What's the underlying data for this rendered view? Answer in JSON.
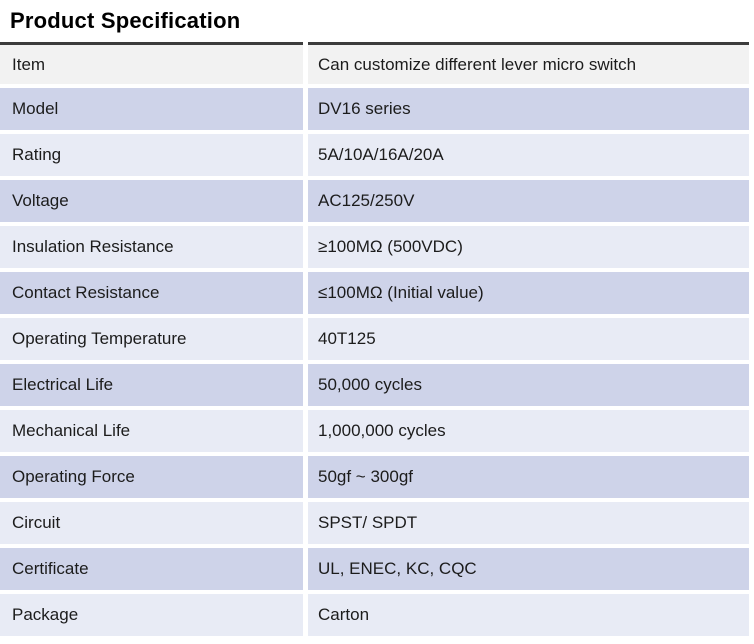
{
  "page": {
    "title": "Product Specification"
  },
  "table": {
    "rows": [
      {
        "label": "Item",
        "value": "Can customize different lever micro switch"
      },
      {
        "label": "Model",
        "value": "DV16 series"
      },
      {
        "label": "Rating",
        "value": "5A/10A/16A/20A"
      },
      {
        "label": "Voltage",
        "value": "AC125/250V"
      },
      {
        "label": "Insulation Resistance",
        "value": "≥100MΩ (500VDC)"
      },
      {
        "label": "Contact Resistance",
        "value": "≤100MΩ (Initial value)"
      },
      {
        "label": "Operating Temperature",
        "value": "40T125"
      },
      {
        "label": "Electrical Life",
        "value": "50,000 cycles"
      },
      {
        "label": "Mechanical Life",
        "value": "1,000,000 cycles"
      },
      {
        "label": "Operating Force",
        "value": "50gf ~ 300gf"
      },
      {
        "label": "Circuit",
        "value": "SPST/ SPDT"
      },
      {
        "label": "Certificate",
        "value": "UL, ENEC, KC, CQC"
      },
      {
        "label": "Package",
        "value": "Carton"
      }
    ]
  },
  "colors": {
    "top_border": "#3c3c3c",
    "row_item_bg": "#f2f2f2",
    "row_lavender": "#ced3e9",
    "row_lavender_light": "#e8ebf5",
    "text": "#1c1c1c",
    "background": "#ffffff"
  }
}
